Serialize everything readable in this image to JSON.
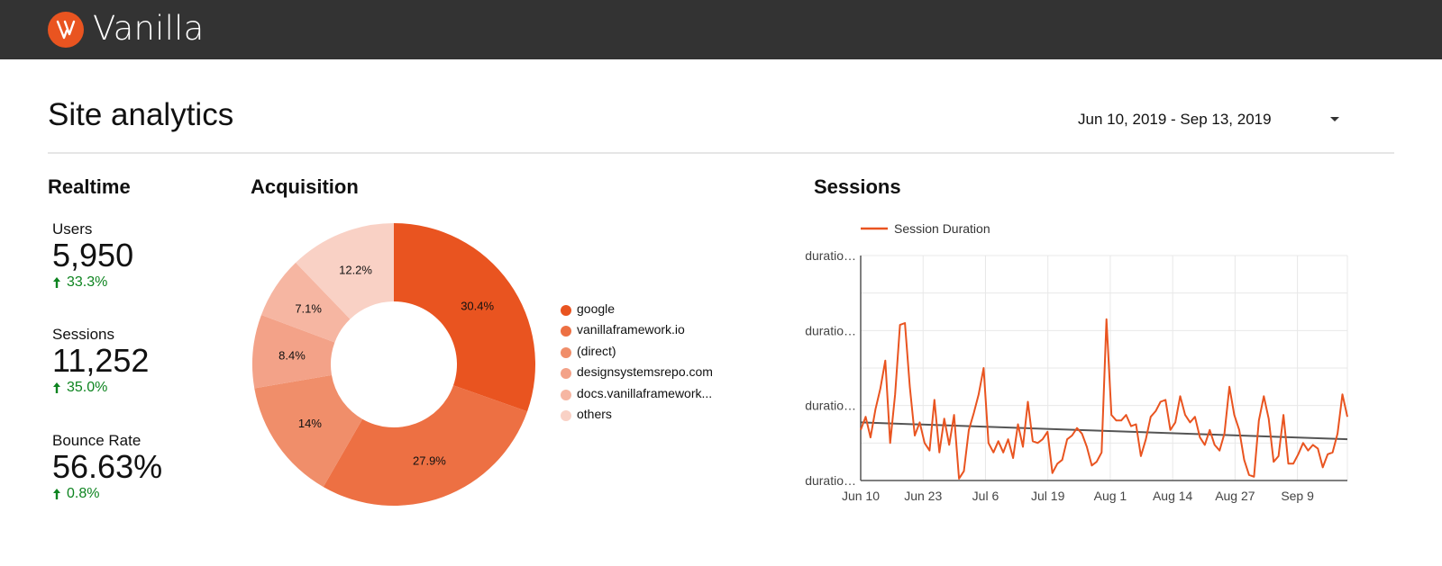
{
  "header": {
    "brand": "Vanilla",
    "logo_icon": "vanilla-logo-icon",
    "brand_color": "#e95420",
    "background_color": "#333333"
  },
  "page": {
    "title": "Site analytics",
    "date_range": "Jun 10, 2019 - Sep 13, 2019"
  },
  "realtime": {
    "title": "Realtime",
    "metrics": [
      {
        "label": "Users",
        "value": "5,950",
        "change": "33.3%"
      },
      {
        "label": "Sessions",
        "value": "11,252",
        "change": "35.0%"
      },
      {
        "label": "Bounce Rate",
        "value": "56.63%",
        "change": "0.8%"
      }
    ],
    "positive_color": "#0e8420"
  },
  "acquisition": {
    "title": "Acquisition",
    "chart_data": {
      "type": "pie",
      "donut": true,
      "categories": [
        "google",
        "vanillaframework.io",
        "(direct)",
        "designsystemsrepo.com",
        "docs.vanillaframework...",
        "others"
      ],
      "values": [
        30.4,
        27.9,
        14,
        8.4,
        7.1,
        12.2
      ],
      "value_labels": [
        "30.4%",
        "27.9%",
        "14%",
        "8.4%",
        "7.1%",
        "12.2%"
      ],
      "colors": [
        "#e95420",
        "#ed7043",
        "#f08e6a",
        "#f3a288",
        "#f6b6a2",
        "#f9d1c5"
      ],
      "legend_position": "right"
    }
  },
  "sessions": {
    "title": "Sessions",
    "chart_data": {
      "type": "line",
      "series": [
        {
          "name": "Session Duration",
          "color": "#e95420",
          "values": [
            1.35,
            1.7,
            1.15,
            1.9,
            2.45,
            3.2,
            1.0,
            2.3,
            4.15,
            4.2,
            2.5,
            1.2,
            1.55,
            1.0,
            0.8,
            2.15,
            0.75,
            1.65,
            0.95,
            1.75,
            0.05,
            0.25,
            1.35,
            1.8,
            2.3,
            3.0,
            1.0,
            0.75,
            1.05,
            0.75,
            1.1,
            0.6,
            1.5,
            0.9,
            2.1,
            1.05,
            1.0,
            1.1,
            1.3,
            0.2,
            0.45,
            0.55,
            1.1,
            1.2,
            1.4,
            1.25,
            0.9,
            0.4,
            0.5,
            0.75,
            4.3,
            1.75,
            1.6,
            1.6,
            1.75,
            1.45,
            1.5,
            0.65,
            1.1,
            1.7,
            1.85,
            2.1,
            2.15,
            1.35,
            1.55,
            2.25,
            1.75,
            1.55,
            1.7,
            1.15,
            0.95,
            1.35,
            0.95,
            0.8,
            1.25,
            2.5,
            1.75,
            1.35,
            0.55,
            0.15,
            0.1,
            1.6,
            2.25,
            1.65,
            0.5,
            0.65,
            1.75,
            0.45,
            0.45,
            0.7,
            1.0,
            0.8,
            0.95,
            0.85,
            0.35,
            0.7,
            0.75,
            1.25,
            2.3,
            1.7
          ]
        }
      ],
      "trendline": {
        "start": 1.55,
        "end": 1.1,
        "color": "#555555"
      },
      "x_tick_labels": [
        "Jun 10",
        "Jun 23",
        "Jul 6",
        "Jul 19",
        "Aug 1",
        "Aug 14",
        "Aug 27",
        "Sep 9"
      ],
      "y_tick_labels": [
        "duratio…",
        "duratio…",
        "duratio…",
        "duratio…"
      ],
      "ylim": [
        0,
        6
      ],
      "grid": true,
      "legend_position": "top-left"
    }
  }
}
